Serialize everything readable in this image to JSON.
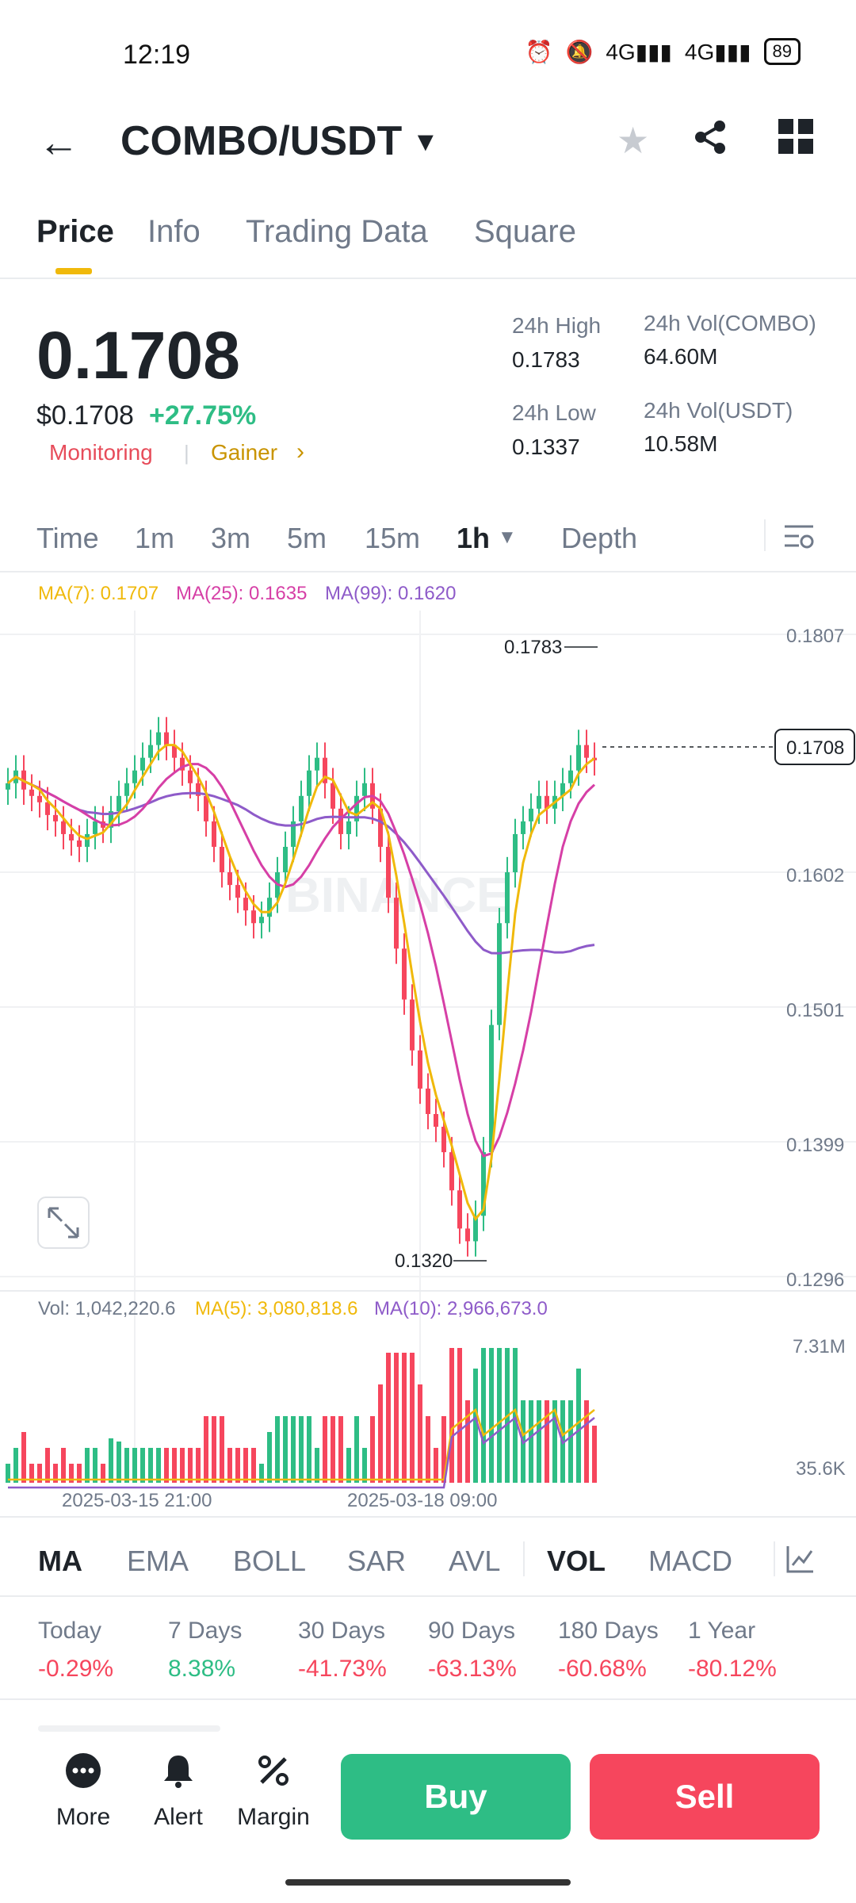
{
  "status": {
    "time": "12:19",
    "battery": "89",
    "net1": "4G",
    "net2": "4G"
  },
  "header": {
    "pair": "COMBO/USDT"
  },
  "tabs": [
    "Price",
    "Info",
    "Trading Data",
    "Square"
  ],
  "price": {
    "last": "0.1708",
    "usd": "$0.1708",
    "change": "+27.75%",
    "tags": [
      "Monitoring",
      "Gainer"
    ],
    "high_label": "24h High",
    "high": "0.1783",
    "low_label": "24h Low",
    "low": "0.1337",
    "volc_label": "24h Vol(COMBO)",
    "volc": "64.60M",
    "volu_label": "24h Vol(USDT)",
    "volu": "10.58M"
  },
  "timeframes": [
    "Time",
    "1m",
    "3m",
    "5m",
    "15m",
    "1h",
    "Depth"
  ],
  "chart_data": {
    "type": "candlestick",
    "ma_legend": {
      "ma7": "MA(7): 0.1707",
      "ma25": "MA(25): 0.1635",
      "ma99": "MA(99): 0.1620"
    },
    "y_ticks": [
      "0.1807",
      "0.1602",
      "0.1501",
      "0.1399",
      "0.1296"
    ],
    "ylim": [
      0.1296,
      0.1807
    ],
    "high_label": "0.1783",
    "low_label": "0.1320",
    "current_label": "0.1708",
    "watermark": "BINANCE",
    "x_ticks": [
      "2025-03-15 21:00",
      "2025-03-18 09:00"
    ],
    "vol_legend": {
      "vol": "Vol: 1,042,220.6",
      "ma5": "MA(5): 3,080,818.6",
      "ma10": "MA(10): 2,966,673.0"
    },
    "vol_ticks": [
      "7.31M",
      "35.6K"
    ],
    "colors": {
      "up": "#2ebd85",
      "down": "#f6465d",
      "ma7": "#f0b90b",
      "ma25": "#d63fa6",
      "ma99": "#8e5bc9"
    },
    "close": [
      0.169,
      0.17,
      0.1685,
      0.168,
      0.1675,
      0.1665,
      0.166,
      0.165,
      0.1645,
      0.164,
      0.165,
      0.166,
      0.1655,
      0.1668,
      0.168,
      0.169,
      0.17,
      0.171,
      0.172,
      0.173,
      0.172,
      0.171,
      0.17,
      0.169,
      0.168,
      0.166,
      0.164,
      0.162,
      0.161,
      0.16,
      0.159,
      0.158,
      0.1585,
      0.16,
      0.162,
      0.164,
      0.166,
      0.168,
      0.17,
      0.171,
      0.169,
      0.167,
      0.165,
      0.166,
      0.168,
      0.169,
      0.167,
      0.164,
      0.16,
      0.156,
      0.152,
      0.148,
      0.145,
      0.143,
      0.142,
      0.14,
      0.137,
      0.134,
      0.133,
      0.135,
      0.14,
      0.15,
      0.158,
      0.162,
      0.165,
      0.166,
      0.167,
      0.168,
      0.167,
      0.168,
      0.169,
      0.17,
      0.172,
      0.171,
      0.1708
    ]
  },
  "indicators": [
    "MA",
    "EMA",
    "BOLL",
    "SAR",
    "AVL",
    "VOL",
    "MACD"
  ],
  "performance": [
    {
      "label": "Today",
      "value": "-0.29%"
    },
    {
      "label": "7 Days",
      "value": "8.38%"
    },
    {
      "label": "30 Days",
      "value": "-41.73%"
    },
    {
      "label": "90 Days",
      "value": "-63.13%"
    },
    {
      "label": "180 Days",
      "value": "-60.68%"
    },
    {
      "label": "1 Year",
      "value": "-80.12%"
    }
  ],
  "bottom": {
    "more": "More",
    "alert": "Alert",
    "margin": "Margin",
    "buy": "Buy",
    "sell": "Sell"
  }
}
